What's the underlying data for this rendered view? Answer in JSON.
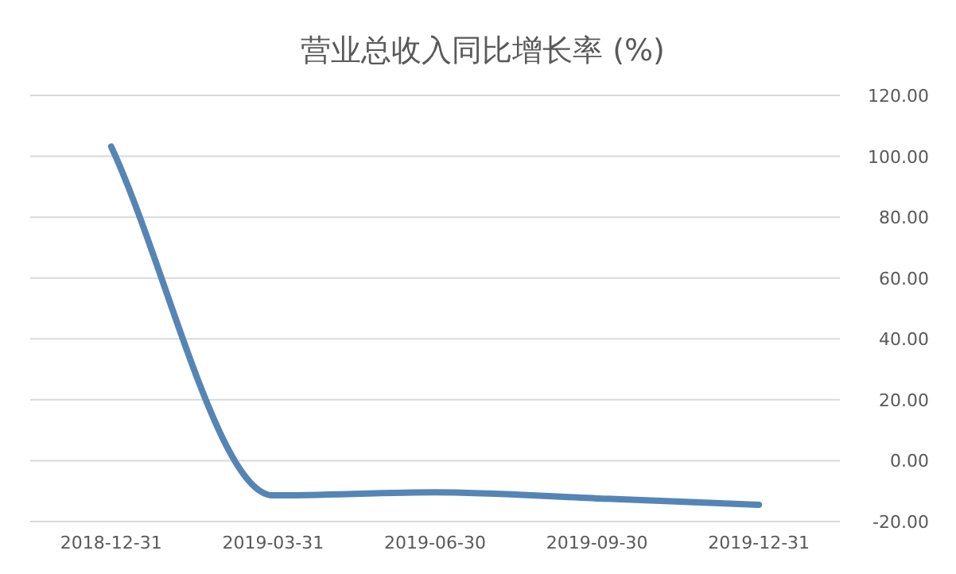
{
  "chart_data": {
    "type": "line",
    "title": "营业总收入同比增长率 (%)",
    "categories": [
      "2018-12-31",
      "2019-03-31",
      "2019-06-30",
      "2019-09-30",
      "2019-12-31"
    ],
    "series": [
      {
        "color": "#5585b5",
        "values": [
          103.2,
          -11.4,
          -10.4,
          -12.4,
          -14.5
        ]
      }
    ],
    "ylim": [
      -20,
      120
    ],
    "yticks": [
      {
        "value": -20,
        "label": "-20.00"
      },
      {
        "value": 0,
        "label": "0.00"
      },
      {
        "value": 20,
        "label": "20.00"
      },
      {
        "value": 40,
        "label": "40.00"
      },
      {
        "value": 60,
        "label": "60.00"
      },
      {
        "value": 80,
        "label": "80.00"
      },
      {
        "value": 100,
        "label": "100.00"
      },
      {
        "value": 120,
        "label": "120.00"
      }
    ],
    "grid": "y",
    "marker": "none",
    "line_style": "solid"
  }
}
